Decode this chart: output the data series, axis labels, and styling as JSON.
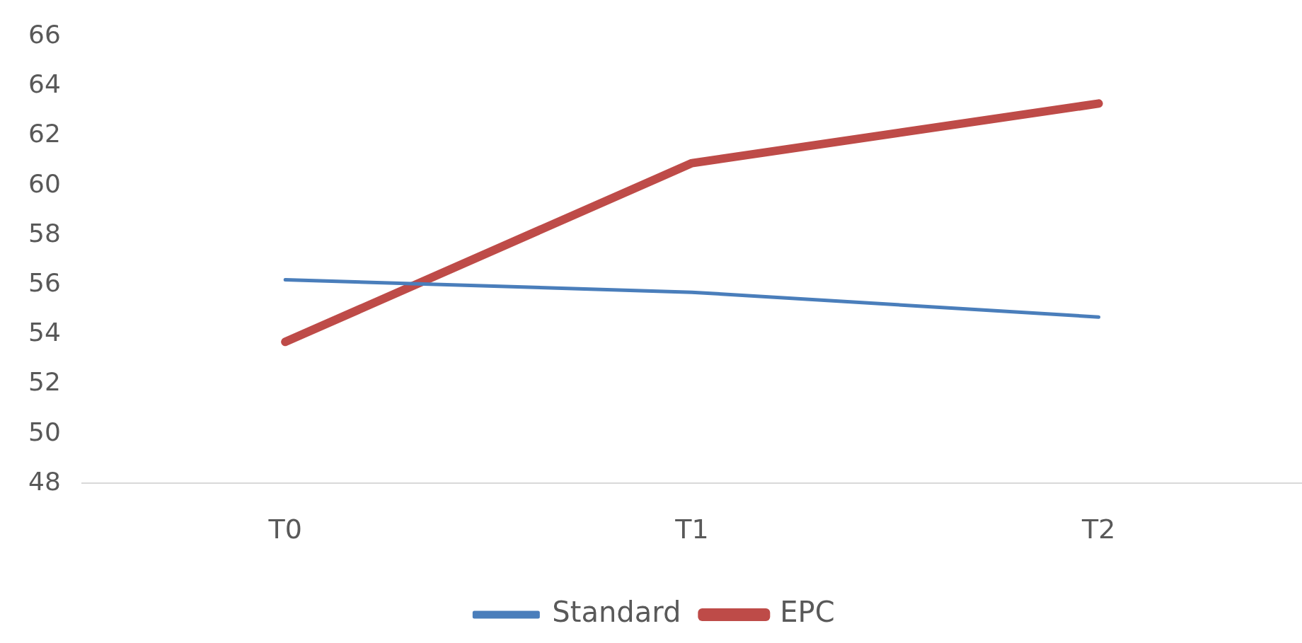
{
  "chart_data": {
    "type": "line",
    "categories": [
      "T0",
      "T1",
      "T2"
    ],
    "series": [
      {
        "name": "Standard",
        "color": "#4a7ebb",
        "values": [
          56.2,
          55.7,
          54.7
        ]
      },
      {
        "name": "EPC",
        "color": "#be4b48",
        "values": [
          53.7,
          60.9,
          63.3
        ]
      }
    ],
    "ylim": [
      48,
      66
    ],
    "yticks": [
      48,
      50,
      52,
      54,
      56,
      58,
      60,
      62,
      64,
      66
    ],
    "grid": false,
    "legend": "bottom",
    "marker": "none",
    "line_style": "solid"
  }
}
